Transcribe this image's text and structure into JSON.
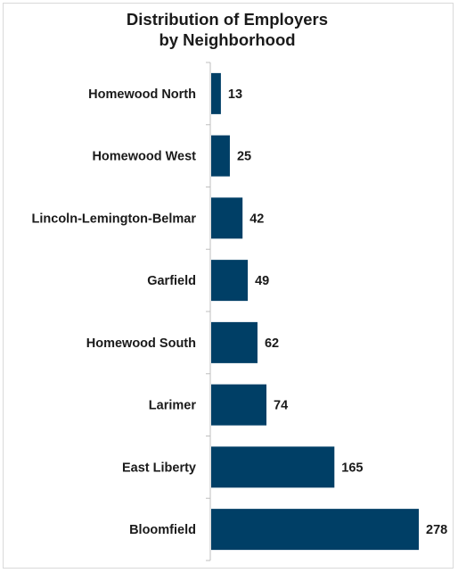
{
  "chart_data": {
    "type": "bar",
    "orientation": "horizontal",
    "title_lines": [
      "Distribution of Employers",
      "by Neighborhood"
    ],
    "categories": [
      "Homewood North",
      "Homewood West",
      "Lincoln-Lemington-Belmar",
      "Garfield",
      "Homewood South",
      "Larimer",
      "East Liberty",
      "Bloomfield"
    ],
    "values": [
      13,
      25,
      42,
      49,
      62,
      74,
      165,
      278
    ],
    "xlim": [
      0,
      278
    ],
    "grid": false,
    "legend": "none",
    "bar_color": "#003f66"
  }
}
